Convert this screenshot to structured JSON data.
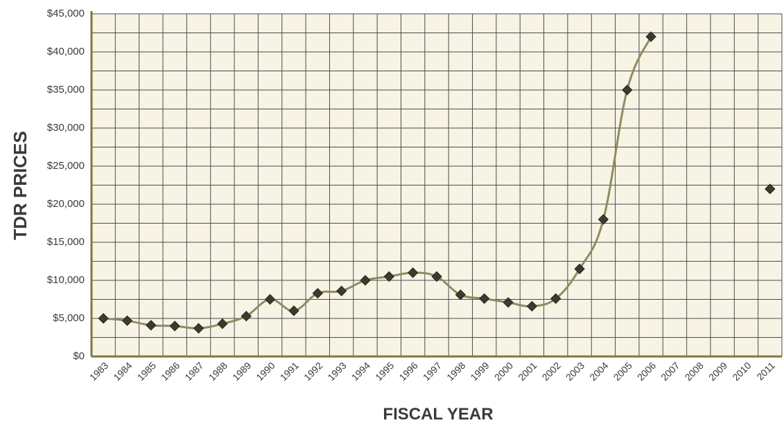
{
  "chart_data": {
    "type": "line",
    "ylabel": "TDR PRICES",
    "xlabel": "FISCAL YEAR",
    "categories": [
      "1983",
      "1984",
      "1985",
      "1986",
      "1987",
      "1988",
      "1989",
      "1990",
      "1991",
      "1992",
      "1993",
      "1994",
      "1995",
      "1996",
      "1997",
      "1998",
      "1999",
      "2000",
      "2001",
      "2002",
      "2003",
      "2004",
      "2005",
      "2006",
      "2007",
      "2008",
      "2009",
      "2010",
      "2011"
    ],
    "values": [
      5000,
      4700,
      4100,
      4000,
      3700,
      4300,
      5300,
      7500,
      6000,
      8300,
      8600,
      10000,
      10500,
      11000,
      10500,
      8100,
      7600,
      7100,
      6600,
      7600,
      11500,
      18000,
      35000,
      42000,
      null,
      null,
      null,
      null,
      22000
    ],
    "y_tick_labels": [
      "$0",
      "$5,000",
      "$10,000",
      "$15,000",
      "$20,000",
      "$25,000",
      "$30,000",
      "$35,000",
      "$40,000",
      "$45,000"
    ],
    "ylim": [
      0,
      45000
    ],
    "grid": true,
    "legend": "none",
    "colors": {
      "background": "#f7f4e6",
      "grid": "#4a4a4a",
      "axis": "#7a7a3a",
      "line": "#8e8b5e",
      "marker": "#3d3a2e",
      "text": "#3a3a3a"
    }
  }
}
